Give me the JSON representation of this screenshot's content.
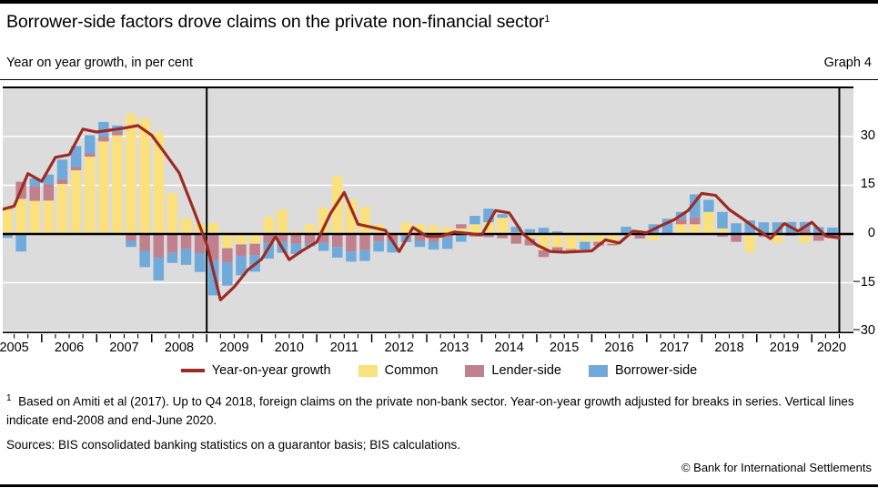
{
  "header": {
    "title": "Borrower-side factors drove claims on the private non-financial sector",
    "title_footnote_marker": "1",
    "subtitle": "Year on year growth, in per cent",
    "graph_label": "Graph 4"
  },
  "chart_data": {
    "type": "bar",
    "subtype": "stacked-quarterly-bars-with-line-overlay",
    "frequency": "quarterly",
    "x_start": "2005-Q1",
    "x_end": "2020-Q2",
    "quarters": [
      "2005-Q1",
      "2005-Q2",
      "2005-Q3",
      "2005-Q4",
      "2006-Q1",
      "2006-Q2",
      "2006-Q3",
      "2006-Q4",
      "2007-Q1",
      "2007-Q2",
      "2007-Q3",
      "2007-Q4",
      "2008-Q1",
      "2008-Q2",
      "2008-Q3",
      "2008-Q4",
      "2009-Q1",
      "2009-Q2",
      "2009-Q3",
      "2009-Q4",
      "2010-Q1",
      "2010-Q2",
      "2010-Q3",
      "2010-Q4",
      "2011-Q1",
      "2011-Q2",
      "2011-Q3",
      "2011-Q4",
      "2012-Q1",
      "2012-Q2",
      "2012-Q3",
      "2012-Q4",
      "2013-Q1",
      "2013-Q2",
      "2013-Q3",
      "2013-Q4",
      "2014-Q1",
      "2014-Q2",
      "2014-Q3",
      "2014-Q4",
      "2015-Q1",
      "2015-Q2",
      "2015-Q3",
      "2015-Q4",
      "2016-Q1",
      "2016-Q2",
      "2016-Q3",
      "2016-Q4",
      "2017-Q1",
      "2017-Q2",
      "2017-Q3",
      "2017-Q4",
      "2018-Q1",
      "2018-Q2",
      "2018-Q3",
      "2018-Q4",
      "2019-Q1",
      "2019-Q2",
      "2019-Q3",
      "2019-Q4",
      "2020-Q1",
      "2020-Q2"
    ],
    "series": [
      {
        "name": "Common",
        "color": "#FAE17D",
        "values": [
          7.0,
          7.7,
          10.8,
          10.2,
          10.3,
          15.4,
          19.6,
          23.8,
          28.5,
          30.4,
          37.0,
          35.5,
          31.4,
          12.5,
          4.9,
          3.2,
          3.3,
          -4.4,
          -3.2,
          -3.0,
          5.3,
          7.4,
          0.8,
          3.0,
          8.1,
          17.8,
          10.7,
          8.3,
          3.0,
          0.0,
          3.5,
          3.0,
          2.6,
          2.1,
          1.7,
          3.0,
          3.6,
          5.0,
          0.5,
          -1.5,
          -5.0,
          -4.1,
          -4.6,
          -2.4,
          -2.4,
          -3.0,
          0.3,
          -0.3,
          -1.9,
          0.0,
          3.0,
          3.0,
          6.8,
          1.7,
          0.0,
          -5.6,
          0.0,
          -2.8,
          0.0,
          -2.8,
          0.0,
          0.0
        ]
      },
      {
        "name": "Lender-side",
        "color": "#C0808E",
        "values": [
          0.5,
          0.5,
          5.3,
          4.6,
          5.0,
          1.5,
          1.0,
          1.0,
          1.5,
          1.0,
          -2.1,
          -5.2,
          -7.3,
          -5.8,
          -4.6,
          -5.9,
          -8.0,
          -4.3,
          -3.6,
          -3.5,
          -2.7,
          -2.4,
          -3.0,
          -2.8,
          -2.7,
          -4.0,
          -5.4,
          -5.0,
          -2.3,
          -2.1,
          -0.5,
          -2.1,
          -2.4,
          -1.1,
          1.3,
          -0.8,
          -1.0,
          -1.3,
          -3.0,
          -2.0,
          -2.1,
          -1.4,
          -0.3,
          0.0,
          -1.2,
          -0.5,
          0.0,
          -1.1,
          0.0,
          0.0,
          1.7,
          2.1,
          0.0,
          -0.8,
          -2.4,
          0.0,
          -0.9,
          0.0,
          -0.5,
          1.4,
          -2.1,
          -1.3
        ]
      },
      {
        "name": "Borrower-side",
        "color": "#6FAADB",
        "values": [
          -1.0,
          -1.2,
          -5.4,
          2.3,
          3.0,
          6.0,
          6.5,
          5.6,
          4.5,
          2.0,
          -1.9,
          -5.0,
          -7.0,
          -3.1,
          -4.9,
          -5.8,
          -10.9,
          -7.2,
          -5.9,
          -5.1,
          -4.9,
          -3.4,
          -3.2,
          -1.0,
          -2.5,
          -3.3,
          -3.1,
          -3.3,
          -3.1,
          -3.6,
          -2.0,
          -1.9,
          -2.4,
          -3.5,
          -2.4,
          2.6,
          4.2,
          1.1,
          1.7,
          1.5,
          1.9,
          0.8,
          0.3,
          -2.4,
          0.0,
          0.0,
          1.9,
          0.0,
          3.0,
          4.7,
          2.1,
          7.1,
          3.7,
          5.1,
          3.3,
          4.2,
          3.6,
          3.6,
          3.7,
          2.3,
          2.1,
          2.0
        ]
      }
    ],
    "line_overlay": {
      "name": "Year-on-year growth",
      "color": "#9E2B23",
      "values": [
        7.4,
        8.6,
        18.6,
        16.2,
        23.6,
        24.4,
        32.3,
        31.4,
        32.0,
        32.6,
        33.4,
        30.4,
        24.7,
        18.8,
        8.0,
        -3.1,
        -20.3,
        -16.3,
        -11.0,
        -7.7,
        -0.8,
        -7.9,
        -5.0,
        -2.5,
        6.3,
        12.8,
        3.0,
        2.1,
        1.1,
        -5.4,
        2.0,
        -0.7,
        -0.7,
        0.6,
        0.2,
        -0.3,
        7.2,
        6.5,
        0.0,
        -3.4,
        -5.4,
        -5.6,
        -5.4,
        -5.2,
        -1.8,
        -2.8,
        0.9,
        0.4,
        2.5,
        4.4,
        7.2,
        12.5,
        11.9,
        7.5,
        4.6,
        1.5,
        -1.4,
        3.2,
        0.9,
        3.6,
        -0.6,
        -1.2
      ]
    },
    "ylim": [
      -30.5,
      45.4
    ],
    "yticks": [
      30,
      15,
      0,
      -15,
      -30
    ],
    "ytick_labels": [
      "30",
      "15",
      "0",
      "−15",
      "−30"
    ],
    "year_labels": [
      "2005",
      "2006",
      "2007",
      "2008",
      "2009",
      "2010",
      "2011",
      "2012",
      "2013",
      "2014",
      "2015",
      "2016",
      "2017",
      "2018",
      "2019",
      "2020"
    ],
    "vlines": [
      {
        "label": "end-2008",
        "after_quarter_index": 15
      },
      {
        "label": "end-June 2020",
        "after_quarter_index": 61
      }
    ],
    "grid": "horizontal-white-gridlines",
    "legend_position": "bottom",
    "colors": {
      "plot_bg": "#DCDCDC",
      "grid": "#FFFFFF",
      "axis": "#000000",
      "zero_line": "#000000"
    }
  },
  "legend": {
    "items": [
      {
        "label": "Year-on-year growth",
        "color": "#9E2B23",
        "swatch": "line"
      },
      {
        "label": "Common",
        "color": "#FAE17D",
        "swatch": "box"
      },
      {
        "label": "Lender-side",
        "color": "#C0808E",
        "swatch": "box"
      },
      {
        "label": "Borrower-side",
        "color": "#6FAADB",
        "swatch": "box"
      }
    ]
  },
  "footnote": {
    "marker": "1",
    "text": "Based on Amiti et al (2017). Up to Q4 2018, foreign claims on the private non-bank sector. Year-on-year growth adjusted for breaks in series. Vertical lines indicate end-2008 and end-June 2020."
  },
  "sources": "Sources: BIS consolidated banking statistics on a guarantor basis; BIS calculations.",
  "copyright": "© Bank for International Settlements"
}
